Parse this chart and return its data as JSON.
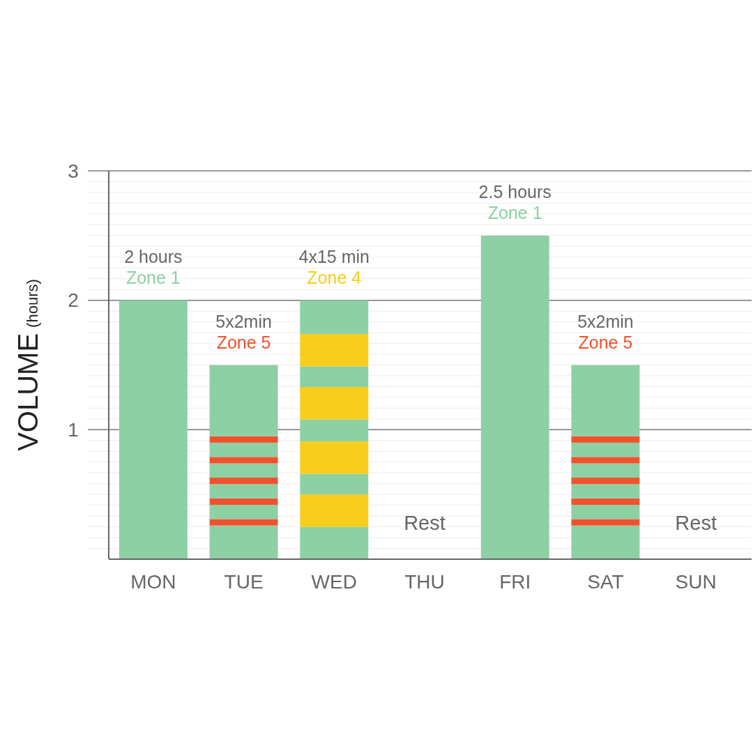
{
  "chart_data": {
    "type": "bar",
    "stacked": true,
    "categories": [
      "MON",
      "TUE",
      "WED",
      "THU",
      "FRI",
      "SAT",
      "SUN"
    ],
    "ylabel": "VOLUME (hours)",
    "ylim": [
      0,
      3
    ],
    "yticks": [
      {
        "value": 0.083,
        "label": null
      },
      {
        "value": 0.167,
        "label": null
      },
      {
        "value": 0.25,
        "label": null
      },
      {
        "value": 0.333,
        "label": null
      },
      {
        "value": 0.417,
        "label": null
      },
      {
        "value": 0.5,
        "label": null
      },
      {
        "value": 0.583,
        "label": null
      },
      {
        "value": 0.667,
        "label": null
      },
      {
        "value": 0.75,
        "label": null
      },
      {
        "value": 0.833,
        "label": null
      },
      {
        "value": 0.917,
        "label": null
      },
      1,
      {
        "value": 1.083,
        "label": null
      },
      {
        "value": 1.167,
        "label": null
      },
      {
        "value": 1.25,
        "label": null
      },
      {
        "value": 1.333,
        "label": null
      },
      {
        "value": 1.417,
        "label": null
      },
      {
        "value": 1.5,
        "label": null
      },
      {
        "value": 1.583,
        "label": null
      },
      {
        "value": 1.667,
        "label": null
      },
      {
        "value": 1.75,
        "label": null
      },
      {
        "value": 1.833,
        "label": null
      },
      {
        "value": 1.917,
        "label": null
      },
      2,
      {
        "value": 2.083,
        "label": null
      },
      {
        "value": 2.167,
        "label": null
      },
      {
        "value": 2.25,
        "label": null
      },
      {
        "value": 2.333,
        "label": null
      },
      {
        "value": 2.417,
        "label": null
      },
      {
        "value": 2.5,
        "label": null
      },
      {
        "value": 2.583,
        "label": null
      },
      {
        "value": 2.667,
        "label": null
      },
      {
        "value": 2.75,
        "label": null
      },
      {
        "value": 2.833,
        "label": null
      },
      {
        "value": 2.917,
        "label": null
      },
      3
    ],
    "grid": "y",
    "series": [
      {
        "color": "#8dd0a3",
        "values": [
          2,
          0.26,
          0.25,
          null,
          2.5,
          0.26,
          null
        ]
      },
      {
        "colors": [
          null,
          "#f0522e",
          "#f9cd1b",
          null,
          null,
          "#f0522e",
          null
        ],
        "values": [
          null,
          0.05,
          0.25,
          null,
          null,
          0.05,
          null
        ]
      },
      {
        "color": "#8dd0a3",
        "values": [
          null,
          0.11,
          0.16,
          null,
          null,
          0.11,
          null
        ]
      },
      {
        "colors": [
          null,
          "#f0522e",
          "#f9cd1b",
          null,
          null,
          "#f0522e",
          null
        ],
        "values": [
          null,
          0.05,
          0.25,
          null,
          null,
          0.05,
          null
        ]
      },
      {
        "color": "#8dd0a3",
        "values": [
          null,
          0.11,
          0.17,
          null,
          null,
          0.11,
          null
        ]
      },
      {
        "colors": [
          null,
          "#f0522e",
          "#f9cd1b",
          null,
          null,
          "#f0522e",
          null
        ],
        "values": [
          null,
          0.05,
          0.25,
          null,
          null,
          0.05,
          null
        ]
      },
      {
        "color": "#8dd0a3",
        "values": [
          null,
          0.11,
          0.16,
          null,
          null,
          0.11,
          null
        ]
      },
      {
        "colors": [
          null,
          "#f0522e",
          "#f9cd1b",
          null,
          null,
          "#f0522e",
          null
        ],
        "values": [
          null,
          0.05,
          0.25,
          null,
          null,
          0.05,
          null
        ]
      },
      {
        "color": "#8dd0a3",
        "values": [
          null,
          0.11,
          0.26,
          null,
          null,
          0.11,
          null
        ]
      },
      {
        "color": "#f0522e",
        "values": [
          null,
          0.05,
          null,
          null,
          null,
          0.05,
          null
        ]
      },
      {
        "color": "#8dd0a3",
        "values": [
          null,
          0.55,
          null,
          null,
          null,
          0.55,
          null
        ]
      }
    ],
    "annotations": [
      {
        "text": "2 hours\nZone 1",
        "x": "MON",
        "y": 2
      },
      {
        "text": "5x2min\nZone 5",
        "x": "TUE",
        "y": 1.5
      },
      {
        "text": "4x15 min\nZone 4",
        "x": "WED",
        "y": 2
      },
      "Rest",
      {
        "text": "2.5 hours\nZone 1",
        "x": "FRI",
        "y": 2.5
      },
      {
        "text": "5x2min\nZone 5",
        "x": "SAT",
        "y": 1.5
      },
      "Rest"
    ]
  }
}
